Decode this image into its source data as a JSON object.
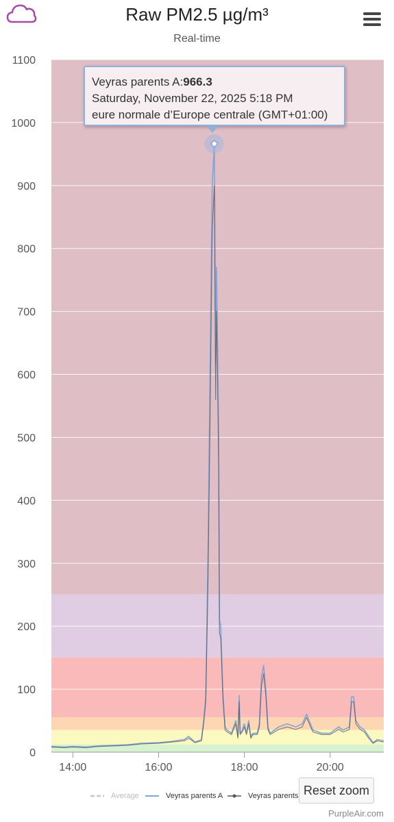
{
  "header": {
    "title": "Raw PM2.5 µg/m³",
    "subtitle": "Real-time"
  },
  "tooltip": {
    "series": "Veyras parents A:",
    "value": "966.3",
    "date": "Saturday, November 22, 2025 5:18 PM",
    "timezone": "eure normale d’Europe centrale (GMT+01:00)"
  },
  "controls": {
    "reset_zoom": "Reset zoom"
  },
  "credit": "PurpleAir.com",
  "colors": {
    "logo": "#a64ca6",
    "series_a": "#7fa5d9",
    "series_b": "#555555",
    "average": "#bbbbbb",
    "band_green": "#d7f2d0",
    "band_yellow": "#fbf9bf",
    "band_orange": "#fdd6b3",
    "band_red": "#fbbaba",
    "band_purple": "#e0cde3",
    "band_maroon": "#dfbec6"
  },
  "chart_data": {
    "type": "line",
    "title": "Raw PM2.5 µg/m³",
    "subtitle": "Real-time",
    "ylim": [
      0,
      1100
    ],
    "xlim": [
      13.5,
      21.25
    ],
    "x_unit": "hour",
    "y_ticks": [
      0,
      100,
      200,
      300,
      400,
      500,
      600,
      700,
      800,
      900,
      1000,
      1100
    ],
    "x_ticks": [
      "14:00",
      "16:00",
      "18:00",
      "20:00"
    ],
    "x_tick_values": [
      14,
      16,
      18,
      20
    ],
    "grid": true,
    "legend_position": "bottom",
    "bands": [
      {
        "from": 0,
        "to": 12,
        "color": "#d7f2d0"
      },
      {
        "from": 12,
        "to": 35.4,
        "color": "#fbf9bf"
      },
      {
        "from": 35.4,
        "to": 55.4,
        "color": "#fdd6b3"
      },
      {
        "from": 55.4,
        "to": 150.4,
        "color": "#fbbaba"
      },
      {
        "from": 150.4,
        "to": 250.4,
        "color": "#e0cde3"
      },
      {
        "from": 250.4,
        "to": 1100,
        "color": "#dfbec6"
      }
    ],
    "highlight": {
      "x": 17.3,
      "y": 966.3
    },
    "series": [
      {
        "name": "Average",
        "color": "#bbbbbb",
        "dashed": true,
        "x": [],
        "y": []
      },
      {
        "name": "Veyras parents A",
        "color": "#7fa5d9",
        "x": [
          13.5,
          13.8,
          14.0,
          14.3,
          14.6,
          15.0,
          15.3,
          15.6,
          16.0,
          16.3,
          16.6,
          16.7,
          16.75,
          16.85,
          17.0,
          17.05,
          17.1,
          17.15,
          17.2,
          17.25,
          17.3,
          17.33,
          17.35,
          17.37,
          17.4,
          17.42,
          17.45,
          17.5,
          17.55,
          17.6,
          17.7,
          17.8,
          17.85,
          17.88,
          17.9,
          17.95,
          18.0,
          18.05,
          18.1,
          18.15,
          18.2,
          18.3,
          18.35,
          18.4,
          18.45,
          18.5,
          18.55,
          18.6,
          18.7,
          18.8,
          19.0,
          19.2,
          19.35,
          19.45,
          19.6,
          19.8,
          20.0,
          20.2,
          20.3,
          20.45,
          20.5,
          20.55,
          20.6,
          20.7,
          20.8,
          20.9,
          21.0,
          21.1,
          21.25
        ],
        "y": [
          9,
          8,
          9,
          8,
          10,
          11,
          12,
          14,
          15,
          17,
          20,
          25,
          22,
          16,
          20,
          50,
          90,
          300,
          600,
          900,
          966.3,
          620,
          770,
          680,
          500,
          210,
          200,
          95,
          40,
          35,
          30,
          50,
          25,
          90,
          30,
          35,
          45,
          30,
          50,
          25,
          30,
          30,
          45,
          120,
          138,
          100,
          40,
          30,
          35,
          40,
          45,
          40,
          45,
          60,
          35,
          30,
          30,
          40,
          35,
          40,
          88,
          88,
          50,
          40,
          35,
          25,
          15,
          20,
          18
        ]
      },
      {
        "name": "Veyras parents B",
        "color": "#555555",
        "x": [
          13.5,
          13.8,
          14.0,
          14.3,
          14.6,
          15.0,
          15.3,
          15.6,
          16.0,
          16.3,
          16.6,
          16.7,
          16.75,
          16.85,
          17.0,
          17.05,
          17.1,
          17.15,
          17.2,
          17.25,
          17.3,
          17.33,
          17.35,
          17.37,
          17.4,
          17.42,
          17.45,
          17.5,
          17.55,
          17.6,
          17.7,
          17.8,
          17.85,
          17.88,
          17.9,
          17.95,
          18.0,
          18.05,
          18.1,
          18.15,
          18.2,
          18.3,
          18.35,
          18.4,
          18.45,
          18.5,
          18.55,
          18.6,
          18.7,
          18.8,
          19.0,
          19.2,
          19.35,
          19.45,
          19.6,
          19.8,
          20.0,
          20.2,
          20.3,
          20.45,
          20.5,
          20.55,
          20.6,
          20.7,
          20.8,
          20.9,
          21.0,
          21.1,
          21.25
        ],
        "y": [
          8,
          7,
          8,
          7,
          9,
          10,
          11,
          13,
          14,
          16,
          18,
          22,
          20,
          15,
          18,
          45,
          80,
          260,
          520,
          830,
          900,
          560,
          700,
          620,
          450,
          190,
          180,
          85,
          35,
          32,
          28,
          45,
          22,
          80,
          28,
          32,
          40,
          28,
          45,
          22,
          28,
          28,
          40,
          105,
          125,
          90,
          36,
          28,
          32,
          36,
          40,
          36,
          40,
          55,
          32,
          28,
          28,
          36,
          32,
          36,
          80,
          80,
          45,
          36,
          32,
          22,
          14,
          18,
          16
        ]
      }
    ]
  }
}
